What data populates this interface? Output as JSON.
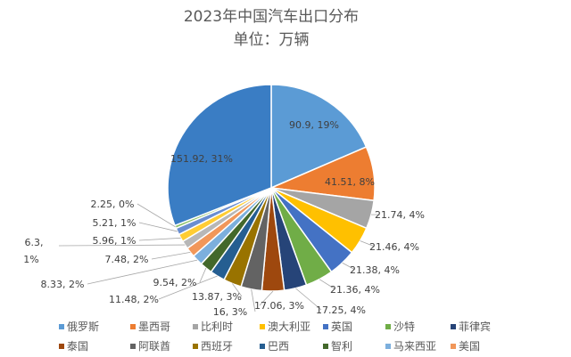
{
  "chart_data": {
    "type": "pie",
    "title": "2023年中国汽车出口分布",
    "subtitle": "单位：万辆",
    "start": "12 o'clock",
    "direction": "clockwise",
    "slices": [
      {
        "name": "俄罗斯",
        "value": 90.9,
        "percent": "19%",
        "color": "#5B9BD5"
      },
      {
        "name": "墨西哥",
        "value": 41.51,
        "percent": "8%",
        "color": "#ED7D31"
      },
      {
        "name": "比利时",
        "value": 21.74,
        "percent": "4%",
        "color": "#A5A5A5"
      },
      {
        "name": "澳大利亚",
        "value": 21.46,
        "percent": "4%",
        "color": "#FFC000"
      },
      {
        "name": "英国",
        "value": 21.38,
        "percent": "4%",
        "color": "#4472C4"
      },
      {
        "name": "沙特",
        "value": 21.36,
        "percent": "4%",
        "color": "#70AD47"
      },
      {
        "name": "菲律宾",
        "value": 17.25,
        "percent": "4%",
        "color": "#264478"
      },
      {
        "name": "泰国",
        "value": 17.06,
        "percent": "3%",
        "color": "#9E480E"
      },
      {
        "name": "阿联酋",
        "value": 16,
        "percent": "3%",
        "color": "#636363"
      },
      {
        "name": "西班牙",
        "value": 13.87,
        "percent": "3%",
        "color": "#997300"
      },
      {
        "name": "巴西",
        "value": 11.48,
        "percent": "2%",
        "color": "#255E91"
      },
      {
        "name": "智利",
        "value": 9.54,
        "percent": "2%",
        "color": "#43682B"
      },
      {
        "name": "马来西亚",
        "value": 8.33,
        "percent": "2%",
        "color": "#7CAFDD"
      },
      {
        "name": "美国",
        "value": 7.48,
        "percent": "2%",
        "color": "#F1975A"
      },
      {
        "name": "",
        "value": 6.3,
        "percent": "1%",
        "color": "#B7B7B7"
      },
      {
        "name": "",
        "value": 5.96,
        "percent": "1%",
        "color": "#FFCD33"
      },
      {
        "name": "",
        "value": 5.21,
        "percent": "1%",
        "color": "#698ED0"
      },
      {
        "name": "",
        "value": 2.25,
        "percent": "0%",
        "color": "#8CC168"
      },
      {
        "name": "",
        "value": 151.92,
        "percent": "31%",
        "color": "#3A7DC4"
      }
    ],
    "legend": {
      "placement": "bottom",
      "entries": [
        "俄罗斯",
        "墨西哥",
        "比利时",
        "澳大利亚",
        "英国",
        "沙特",
        "菲律宾",
        "泰国",
        "阿联酋",
        "西班牙",
        "巴西",
        "智利",
        "马来西亚",
        "美国"
      ]
    }
  }
}
